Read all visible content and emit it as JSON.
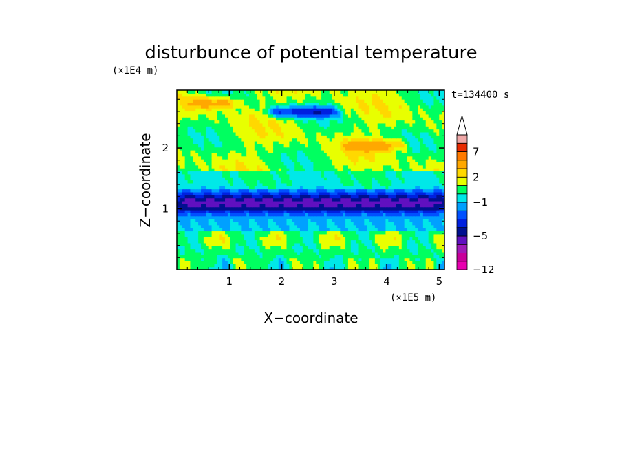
{
  "chart_data": {
    "type": "heatmap",
    "title": "disturbunce of potential temperature",
    "time_label": "t=134400 s",
    "xlabel": "X−coordinate",
    "ylabel": "Z−coordinate",
    "x_unit": "(×1E5 m)",
    "y_unit": "(×1E4 m)",
    "xlim": [
      0,
      5.1
    ],
    "ylim": [
      0,
      2.95
    ],
    "x_ticks": [
      1,
      2,
      3,
      4,
      5
    ],
    "x_tick_labels": [
      "1",
      "2",
      "3",
      "4",
      "5"
    ],
    "y_ticks": [
      1,
      2
    ],
    "y_tick_labels": [
      "1",
      "2"
    ],
    "colorbar": {
      "levels": [
        -12,
        -10,
        -8,
        -6,
        -5,
        -4,
        -3,
        -2,
        -1,
        0,
        1,
        2,
        3,
        5,
        7,
        9,
        11
      ],
      "colors": [
        "#e800b0",
        "#c8009a",
        "#a01ab8",
        "#6010c0",
        "#001090",
        "#0020e0",
        "#0050ff",
        "#00a0ff",
        "#00e8e8",
        "#00ff60",
        "#e8ff00",
        "#ffd800",
        "#ffa800",
        "#ff7a00",
        "#e82a00",
        "#f0a8a8"
      ],
      "extend": "max",
      "label_values": [
        "7",
        "2",
        "−1",
        "−5",
        "−12"
      ]
    },
    "features": [
      {
        "x0": 0.0,
        "x1": 5.1,
        "z": 1.1,
        "halfwidth": 0.17,
        "value": -5.5
      },
      {
        "x0": 1.8,
        "x1": 3.0,
        "z": 2.6,
        "halfwidth": 0.09,
        "value": -5.0
      },
      {
        "x0": 0.3,
        "x1": 1.1,
        "z": 2.75,
        "halfwidth": 0.1,
        "value": 3.5
      },
      {
        "x0": 3.3,
        "x1": 4.3,
        "z": 2.05,
        "halfwidth": 0.09,
        "value": 3.0
      },
      {
        "x0": 0.0,
        "x1": 5.1,
        "z": 0.5,
        "halfwidth": 0.12,
        "value": 1.0
      }
    ]
  }
}
